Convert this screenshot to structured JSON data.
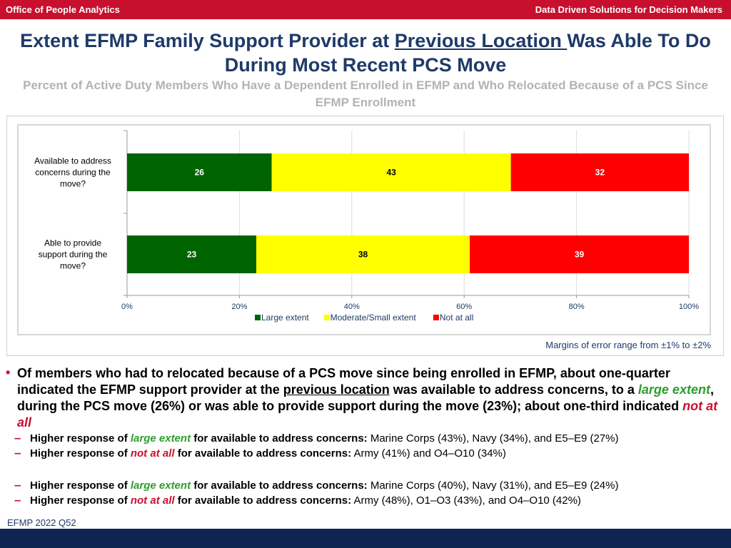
{
  "header": {
    "left": "Office of People Analytics",
    "right": "Data Driven Solutions for Decision Makers"
  },
  "title": {
    "part1": "Extent EFMP Family Support Provider at ",
    "underlined": "Previous Location ",
    "part2": "Was Able To Do During Most Recent PCS Move"
  },
  "subtitle": "Percent of Active Duty Members Who Have a Dependent Enrolled in EFMP and Who Relocated Because of a PCS Since EFMP Enrollment",
  "chart_data": {
    "type": "bar",
    "orientation": "horizontal",
    "stacked": true,
    "categories": [
      "Available to address concerns during the move?",
      "Able to provide support during the move?"
    ],
    "series": [
      {
        "name": "Large extent",
        "values": [
          26,
          23
        ],
        "color": "#006400"
      },
      {
        "name": "Moderate/Small extent",
        "values": [
          43,
          38
        ],
        "color": "#ffff00"
      },
      {
        "name": "Not at all",
        "values": [
          32,
          39
        ],
        "color": "#ff0000"
      }
    ],
    "xlim": [
      0,
      100
    ],
    "xticks": [
      "0%",
      "20%",
      "40%",
      "60%",
      "80%",
      "100%"
    ],
    "legend_position": "bottom",
    "grid": true
  },
  "moe_note": "Margins of error range from ±1% to ±2%",
  "bullets": {
    "main": {
      "t1": "Of members who had to relocated because of a PCS move since being enrolled in EFMP, about one-quarter indicated the EFMP support provider at the ",
      "t1_u": "previous location",
      "t2": " was available to address concerns, to a ",
      "t2_green": "large extent",
      "t3": ", during the PCS move (26%) or was able to provide support during the move (23%); about one-third indicated ",
      "t3_red": "not at all"
    },
    "subs": [
      {
        "lead": "Higher response of ",
        "em": "large extent",
        "em_color": "green",
        "mid": " for available to address concerns:",
        "tail": "  Marine Corps (43%), Navy (34%), and E5–E9 (27%)"
      },
      {
        "lead": "Higher response of ",
        "em": "not at all",
        "em_color": "red",
        "mid": " for available to address concerns:",
        "tail": "  Army (41%) and O4–O10 (34%)"
      },
      {
        "lead": "Higher response of ",
        "em": "large extent",
        "em_color": "green",
        "mid": " for available to address concerns:",
        "tail": "  Marine Corps (40%), Navy (31%), and E5–E9 (24%)"
      },
      {
        "lead": "Higher response of ",
        "em": "not at all",
        "em_color": "red",
        "mid": " for available to address concerns:",
        "tail": "  Army (48%), O1–O3 (43%), and O4–O10 (42%)"
      }
    ]
  },
  "footnote": "EFMP 2022 Q52",
  "colors": {
    "header_red": "#c8102e",
    "title_navy": "#1f3a68",
    "footer_navy": "#0d2550"
  }
}
